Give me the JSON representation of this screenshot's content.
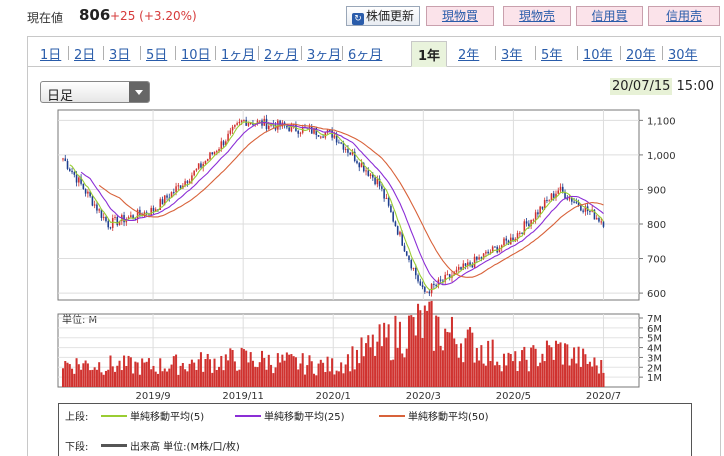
{
  "header": {
    "price_label": "現在値",
    "price_value": "806",
    "price_change": "+25 (+3.20%)",
    "refresh_label": "株価更新",
    "genbutsu_buy": "現物買",
    "genbutsu_sell": "現物売",
    "shinyo_buy": "信用買",
    "shinyo_sell": "信用売"
  },
  "tabs": [
    "1日",
    "2日",
    "3日",
    "5日",
    "10日",
    "1ヶ月",
    "2ヶ月",
    "3ヶ月",
    "6ヶ月",
    "1年",
    "2年",
    "3年",
    "5年",
    "10年",
    "20年",
    "30年"
  ],
  "active_tab": "1年",
  "period_select": {
    "value": "日足"
  },
  "datetime": {
    "date": "20/07/15",
    "time": "15:00"
  },
  "colors": {
    "up": "#d0322f",
    "down": "#1f3f8f",
    "ma5": "#9acd32",
    "ma25": "#8b2ed6",
    "ma50": "#d8623a",
    "volume": "#d0322f"
  },
  "chart_data": [
    {
      "type": "candlestick",
      "ylim": [
        580,
        1130
      ],
      "y_ticks": [
        "1,100",
        "1,000",
        "900",
        "800",
        "700",
        "600"
      ],
      "x_ticks": [
        "2019/9",
        "2019/11",
        "2020/1",
        "2020/3",
        "2020/5",
        "2020/7"
      ],
      "key_points": [
        {
          "x": "2019/7",
          "close": 990
        },
        {
          "x": "2019/8",
          "close": 800
        },
        {
          "x": "2019/9",
          "close": 840
        },
        {
          "x": "2019/10",
          "close": 960
        },
        {
          "x": "2019/11",
          "close": 1100
        },
        {
          "x": "2019/12",
          "close": 1080
        },
        {
          "x": "2020/1",
          "close": 1060
        },
        {
          "x": "2020/2",
          "close": 920
        },
        {
          "x": "2020/3",
          "close": 600
        },
        {
          "x": "2020/4",
          "close": 680
        },
        {
          "x": "2020/5",
          "close": 760
        },
        {
          "x": "2020/6",
          "close": 900
        },
        {
          "x": "2020/7",
          "close": 806
        }
      ],
      "series": [
        {
          "name": "単純移動平均(5)"
        },
        {
          "name": "単純移動平均(25)"
        },
        {
          "name": "単純移動平均(50)"
        }
      ]
    },
    {
      "type": "bar",
      "unit_label": "単位: M",
      "y_ticks": [
        "7M",
        "6M",
        "5M",
        "4M",
        "3M",
        "2M",
        "1M"
      ],
      "ylim": [
        0,
        7
      ],
      "key_points": [
        {
          "x": "2019/7",
          "value": 2.5
        },
        {
          "x": "2019/9",
          "value": 2.2
        },
        {
          "x": "2019/11",
          "value": 3.0
        },
        {
          "x": "2020/1",
          "value": 2.2
        },
        {
          "x": "2020/3",
          "value": 6.8
        },
        {
          "x": "2020/5",
          "value": 2.6
        },
        {
          "x": "2020/6",
          "value": 4.0
        },
        {
          "x": "2020/7",
          "value": 2.0
        }
      ]
    }
  ],
  "legend": {
    "upper_label": "上段:",
    "ma5": "単純移動平均(5)",
    "ma25": "単純移動平均(25)",
    "ma50": "単純移動平均(50)",
    "lower_label": "下段:",
    "volume": "出来高 単位:(M株/口/枚)"
  }
}
